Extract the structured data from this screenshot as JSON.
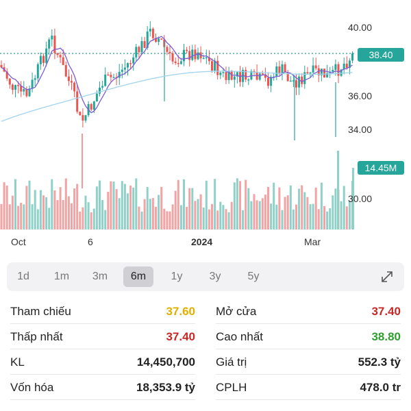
{
  "chart": {
    "y_ticks": [
      "40.00",
      "36.00",
      "34.00",
      "30.00"
    ],
    "x_ticks": [
      "Oct",
      "6",
      "2024",
      "Mar"
    ],
    "price_tag": "38.40",
    "volume_tag": "14.45M",
    "colors": {
      "up": "#26a69a",
      "down": "#ef5350",
      "ma_short": "#7b5bd6",
      "ma_long": "#9fd3f0",
      "price_line": "#2a9d8f",
      "volume_tag": "#26a69a",
      "price_tag": "#26a69a"
    }
  },
  "timeframes": {
    "items": [
      "1d",
      "1m",
      "3m",
      "6m",
      "1y",
      "3y",
      "5y"
    ],
    "selected": "6m",
    "expand_icon": "expand-icon"
  },
  "stats": {
    "rows": [
      {
        "left_label": "Tham chiếu",
        "left_value": "37.60",
        "left_color": "#e0b000",
        "right_label": "Mở cửa",
        "right_value": "37.40",
        "right_color": "#c62828"
      },
      {
        "left_label": "Thấp nhất",
        "left_value": "37.40",
        "left_color": "#c62828",
        "right_label": "Cao nhất",
        "right_value": "38.80",
        "right_color": "#2e9e2e"
      },
      {
        "left_label": "KL",
        "left_value": "14,450,700",
        "left_color": "#222222",
        "right_label": "Giá trị",
        "right_value": "552.3 tỷ",
        "right_color": "#222222"
      },
      {
        "left_label": "Vốn hóa",
        "left_value": "18,353.9 tỷ",
        "left_color": "#222222",
        "right_label": "CPLH",
        "right_value": "478.0 tr",
        "right_color": "#222222"
      }
    ]
  }
}
